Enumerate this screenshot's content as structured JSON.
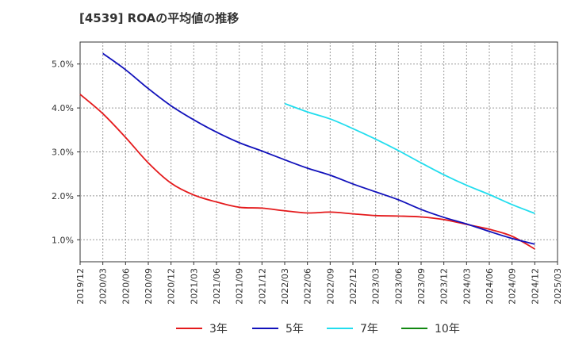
{
  "chart_data": {
    "type": "line",
    "title": "[4539]  ROAの平均値の推移",
    "xlabel": "",
    "ylabel": "",
    "x_ticks": [
      "2019/12",
      "2020/03",
      "2020/06",
      "2020/09",
      "2020/12",
      "2021/03",
      "2021/06",
      "2021/09",
      "2021/12",
      "2022/03",
      "2022/06",
      "2022/09",
      "2022/12",
      "2023/03",
      "2023/06",
      "2023/09",
      "2023/12",
      "2024/03",
      "2024/06",
      "2024/09",
      "2024/12",
      "2025/03"
    ],
    "y_ticks": [
      1.0,
      2.0,
      3.0,
      4.0,
      5.0
    ],
    "y_tick_labels": [
      "1.0%",
      "2.0%",
      "3.0%",
      "4.0%",
      "5.0%"
    ],
    "ylim": [
      0.5,
      5.5
    ],
    "grid": "horizontal dashed",
    "legend_position": "bottom",
    "series": [
      {
        "name": "3年",
        "color": "#e41a1c",
        "points": [
          [
            "2019/12",
            4.31
          ],
          [
            "2020/03",
            3.87
          ],
          [
            "2020/06",
            3.33
          ],
          [
            "2020/09",
            2.75
          ],
          [
            "2020/12",
            2.29
          ],
          [
            "2021/03",
            2.02
          ],
          [
            "2021/06",
            1.86
          ],
          [
            "2021/09",
            1.74
          ],
          [
            "2021/12",
            1.72
          ],
          [
            "2022/03",
            1.66
          ],
          [
            "2022/06",
            1.61
          ],
          [
            "2022/09",
            1.63
          ],
          [
            "2022/12",
            1.59
          ],
          [
            "2023/03",
            1.55
          ],
          [
            "2023/06",
            1.54
          ],
          [
            "2023/09",
            1.52
          ],
          [
            "2023/12",
            1.46
          ],
          [
            "2024/03",
            1.35
          ],
          [
            "2024/06",
            1.24
          ],
          [
            "2024/09",
            1.08
          ],
          [
            "2024/12",
            0.79
          ]
        ]
      },
      {
        "name": "5年",
        "color": "#1111bb",
        "points": [
          [
            "2020/03",
            5.24
          ],
          [
            "2020/06",
            4.87
          ],
          [
            "2020/09",
            4.44
          ],
          [
            "2020/12",
            4.05
          ],
          [
            "2021/03",
            3.73
          ],
          [
            "2021/06",
            3.45
          ],
          [
            "2021/09",
            3.21
          ],
          [
            "2021/12",
            3.02
          ],
          [
            "2022/03",
            2.82
          ],
          [
            "2022/06",
            2.63
          ],
          [
            "2022/09",
            2.47
          ],
          [
            "2022/12",
            2.27
          ],
          [
            "2023/03",
            2.09
          ],
          [
            "2023/06",
            1.91
          ],
          [
            "2023/09",
            1.69
          ],
          [
            "2023/12",
            1.51
          ],
          [
            "2024/03",
            1.36
          ],
          [
            "2024/06",
            1.19
          ],
          [
            "2024/09",
            1.03
          ],
          [
            "2024/12",
            0.9
          ]
        ]
      },
      {
        "name": "7年",
        "color": "#22ddee",
        "points": [
          [
            "2022/03",
            4.1
          ],
          [
            "2022/06",
            3.91
          ],
          [
            "2022/09",
            3.75
          ],
          [
            "2022/12",
            3.53
          ],
          [
            "2023/03",
            3.29
          ],
          [
            "2023/06",
            3.03
          ],
          [
            "2023/09",
            2.75
          ],
          [
            "2023/12",
            2.48
          ],
          [
            "2024/03",
            2.24
          ],
          [
            "2024/06",
            2.03
          ],
          [
            "2024/09",
            1.8
          ],
          [
            "2024/12",
            1.6
          ]
        ]
      },
      {
        "name": "10年",
        "color": "#118811",
        "points": []
      }
    ]
  }
}
